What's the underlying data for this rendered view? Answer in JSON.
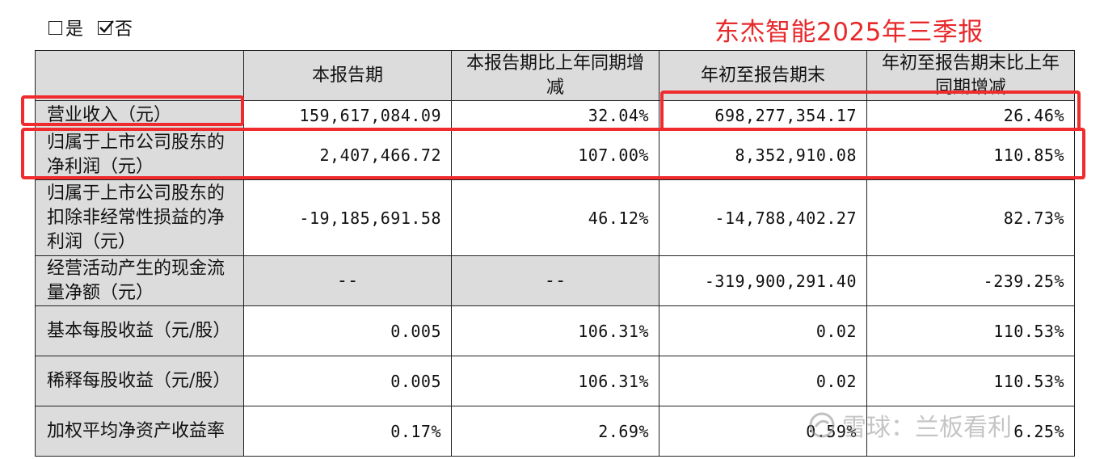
{
  "options": {
    "yes_label": "是",
    "yes_checked": false,
    "no_label": "否",
    "no_checked": true
  },
  "title": "东杰智能2025年三季报",
  "table": {
    "headers": [
      "",
      "本报告期",
      "本报告期比上年同期增减",
      "年初至报告期末",
      "年初至报告期末比上年同期增减"
    ],
    "rows": [
      {
        "label": "营业收入（元）",
        "values": [
          "159,617,084.09",
          "32.04%",
          "698,277,354.17",
          "26.46%"
        ]
      },
      {
        "label": "归属于上市公司股东的净利润（元）",
        "values": [
          "2,407,466.72",
          "107.00%",
          "8,352,910.08",
          "110.85%"
        ]
      },
      {
        "label": "归属于上市公司股东的扣除非经常性损益的净利润（元）",
        "values": [
          "-19,185,691.58",
          "46.12%",
          "-14,788,402.27",
          "82.73%"
        ]
      },
      {
        "label": "经营活动产生的现金流量净额（元）",
        "values": [
          "--",
          "--",
          "-319,900,291.40",
          "-239.25%"
        ]
      },
      {
        "label": "基本每股收益（元/股）",
        "values": [
          "0.005",
          "106.31%",
          "0.02",
          "110.53%"
        ]
      },
      {
        "label": "稀释每股收益（元/股）",
        "values": [
          "0.005",
          "106.31%",
          "0.02",
          "110.53%"
        ]
      },
      {
        "label": "加权平均净资产收益率",
        "values": [
          "0.17%",
          "2.69%",
          "0.59%",
          "6.25%"
        ]
      }
    ]
  },
  "watermark": {
    "text": "雪球：兰板看利",
    "icon": "snowball-logo-icon"
  }
}
